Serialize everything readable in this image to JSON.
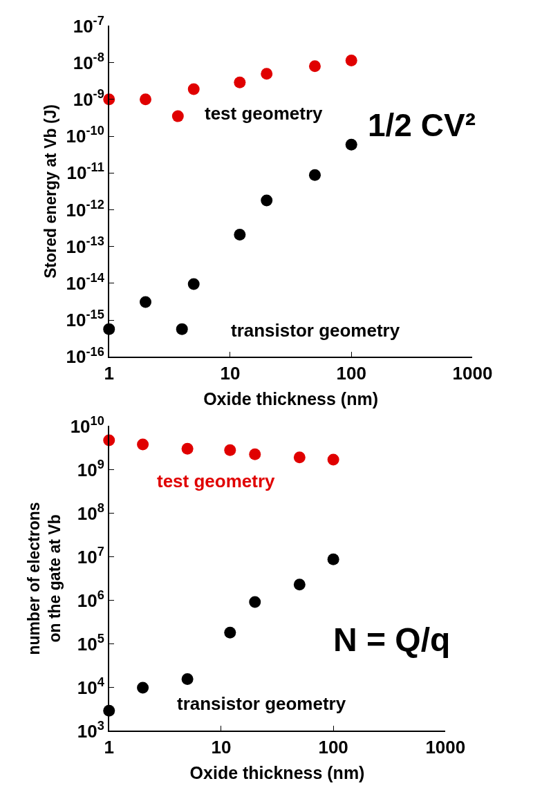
{
  "chart_data": [
    {
      "type": "scatter",
      "xlabel": "Oxide thickness (nm)",
      "ylabel": "Stored energy at Vb (J)",
      "log": "xy",
      "marker": "circle",
      "xlim": [
        1,
        1000
      ],
      "xticks": [
        1,
        10,
        100,
        1000
      ],
      "ylim": [
        1e-16,
        1e-07
      ],
      "yticks": [
        {
          "value": 1e-16,
          "label": "10$^{-16}$"
        },
        {
          "value": 1e-15,
          "label": "10$^{-15}$"
        },
        {
          "value": 1e-14,
          "label": "10$^{-14}$"
        },
        {
          "value": 1e-13,
          "label": "10$^{-13}$"
        },
        {
          "value": 1e-12,
          "label": "10$^{-12}$"
        },
        {
          "value": 1e-11,
          "label": "10$^{-11}$"
        },
        {
          "value": 1e-10,
          "label": "10$^{-10}$"
        },
        {
          "value": 1e-09,
          "label": "10$^{-9}$"
        },
        {
          "value": 1e-08,
          "label": "10$^{-8}$"
        },
        {
          "value": 1e-07,
          "label": "10$^{-7}$"
        }
      ],
      "series": [
        {
          "name": "test geometry",
          "color": "#e00000",
          "x": [
            1,
            2,
            3.7,
            5,
            12,
            20,
            50,
            100
          ],
          "values": [
            1e-09,
            1e-09,
            3.5e-10,
            1.9e-09,
            2.9e-09,
            5e-09,
            8e-09,
            1.15e-08
          ]
        },
        {
          "name": "transistor geometry",
          "color": "#000000",
          "x": [
            1,
            2,
            4,
            5,
            12,
            20,
            50,
            100
          ],
          "values": [
            5.7e-16,
            3.1e-15,
            5.7e-16,
            9.5e-15,
            2.1e-13,
            1.8e-12,
            8.8e-12,
            5.9e-11
          ]
        }
      ],
      "annotations": [
        "1/2 CV²"
      ]
    },
    {
      "type": "scatter",
      "xlabel": "Oxide thickness (nm)",
      "ylabel": "number of electrons\non the gate at Vb",
      "log": "xy",
      "marker": "circle",
      "xlim": [
        1,
        1000
      ],
      "xticks": [
        1,
        10,
        100,
        1000
      ],
      "ylim": [
        1000,
        10000000000.0
      ],
      "yticks": [
        {
          "value": 1000,
          "label": "10$^{3}$"
        },
        {
          "value": 10000.0,
          "label": "10$^{4}$"
        },
        {
          "value": 100000.0,
          "label": "10$^{5}$"
        },
        {
          "value": 1000000.0,
          "label": "10$^{6}$"
        },
        {
          "value": 10000000.0,
          "label": "10$^{7}$"
        },
        {
          "value": 100000000.0,
          "label": "10$^{8}$"
        },
        {
          "value": 1000000000.0,
          "label": "10$^{9}$"
        },
        {
          "value": 10000000000.0,
          "label": "10$^{10}$"
        }
      ],
      "series": [
        {
          "name": "test geometry",
          "color": "#e00000",
          "x": [
            1,
            2,
            5,
            12,
            20,
            50,
            100
          ],
          "values": [
            4700000000.0,
            3800000000.0,
            3000000000.0,
            2800000000.0,
            2250000000.0,
            1900000000.0,
            1700000000.0
          ]
        },
        {
          "name": "transistor geometry",
          "color": "#000000",
          "x": [
            1,
            2,
            5,
            12,
            20,
            50,
            100
          ],
          "values": [
            2900,
            9800,
            15500,
            180000.0,
            910000.0,
            2300000.0,
            8700000.0
          ]
        }
      ],
      "annotations": [
        "N = Q/q"
      ]
    }
  ]
}
